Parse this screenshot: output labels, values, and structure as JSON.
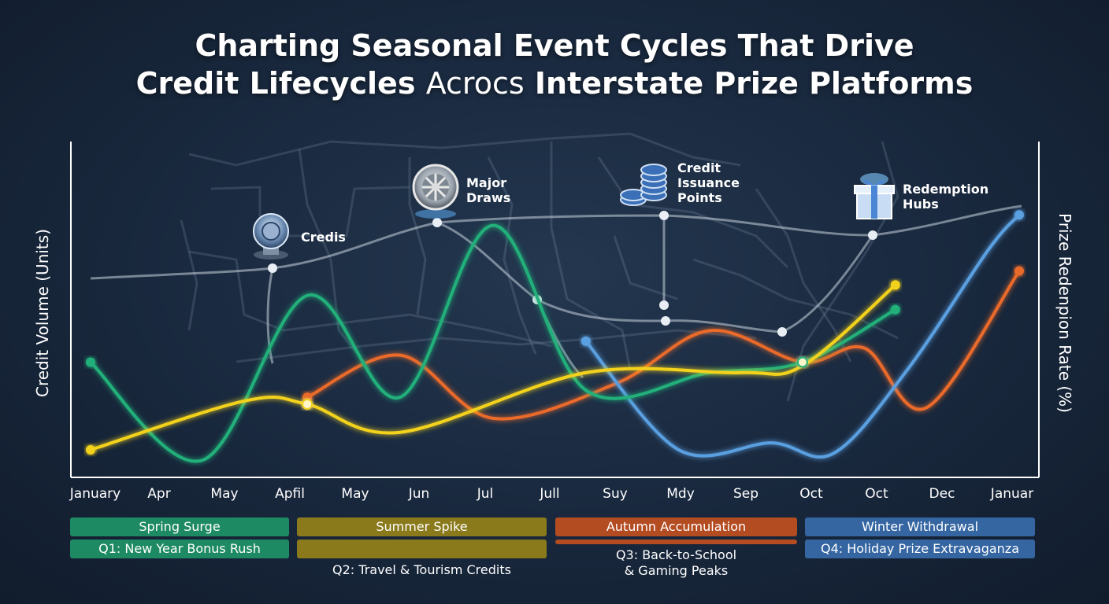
{
  "title": {
    "line1": "Charting Seasonal Event Cycles That Drive",
    "line2_a": "Credit Lifecycles",
    "line2_b": "Acrocs",
    "line2_c": "Interstate Prize Platforms"
  },
  "colors": {
    "teal": "#22b07a",
    "yellow": "#f2d21b",
    "orange": "#ea6a2c",
    "blue": "#5a9fe0",
    "route": "#c9d3de"
  },
  "callouts": [
    {
      "icon": "chip-icon",
      "label": "Credis"
    },
    {
      "icon": "wheel-icon",
      "label": "Major\nDraws"
    },
    {
      "icon": "coin-stack-icon",
      "label": "Credit\nIssuance\nPoints"
    },
    {
      "icon": "gift-icon",
      "label": "Redemption\nHubs"
    }
  ],
  "legend_bands": [
    {
      "label": "Spring Surge",
      "sub": "Q1: New Year Bonus Rush",
      "color": "#1e8a63"
    },
    {
      "label": "Summer Spike",
      "sub": "Q2: Travel & Tourism Credits",
      "color": "#8a7a1c"
    },
    {
      "label": "Autumn Accumulation",
      "sub": "Q3: Back-to-School\n& Gaming Peaks",
      "color": "#b44c22"
    },
    {
      "label": "Winter Withdrawal",
      "sub": "Q4: Holiday Prize Extravaganza",
      "color": "#3566a2"
    }
  ],
  "chart_data": {
    "type": "line",
    "title": "Charting Seasonal Event Cycles That Drive Credit Lifecycles Acrocs Interstate Prize Platforms",
    "ylabel_left": "Credit Volume (Units)",
    "ylabel_right": "Prize Redenpion Rate (%)",
    "categories": [
      "January",
      "Apr",
      "May",
      "Apfil",
      "May",
      "Jun",
      "Jul",
      "Jull",
      "Suy",
      "Mdy",
      "Sep",
      "Oct",
      "Oct",
      "Dec",
      "Januar"
    ],
    "ylim": [
      0,
      100
    ],
    "grid": false,
    "legend": "none",
    "series": [
      {
        "color": "teal",
        "values": [
          [
            0,
            38
          ],
          [
            1.8,
            10
          ],
          [
            3.5,
            57
          ],
          [
            5,
            28
          ],
          [
            6.5,
            77
          ],
          [
            8,
            30
          ],
          [
            10,
            35
          ],
          [
            11.5,
            38
          ],
          [
            13,
            53
          ]
        ]
      },
      {
        "color": "yellow",
        "values": [
          [
            0,
            13
          ],
          [
            2.5,
            27
          ],
          [
            3.5,
            26
          ],
          [
            5,
            18
          ],
          [
            8,
            35
          ],
          [
            10.5,
            35
          ],
          [
            11.5,
            37
          ],
          [
            13,
            60
          ]
        ]
      },
      {
        "color": "orange",
        "values": [
          [
            3.5,
            28
          ],
          [
            5,
            40
          ],
          [
            6.5,
            22
          ],
          [
            8.5,
            32
          ],
          [
            10,
            47
          ],
          [
            11.5,
            38
          ],
          [
            12.5,
            42
          ],
          [
            13.5,
            25
          ],
          [
            15,
            64
          ]
        ]
      },
      {
        "color": "blue",
        "values": [
          [
            8,
            44
          ],
          [
            9.5,
            13
          ],
          [
            11,
            15
          ],
          [
            12,
            12
          ],
          [
            13.2,
            36
          ],
          [
            14.5,
            70
          ],
          [
            15,
            80
          ]
        ]
      }
    ],
    "highlight_points": [
      {
        "series": "yellow",
        "x": 3.5,
        "y": 26
      },
      {
        "series": "teal",
        "x": 11.5,
        "y": 38
      }
    ]
  }
}
